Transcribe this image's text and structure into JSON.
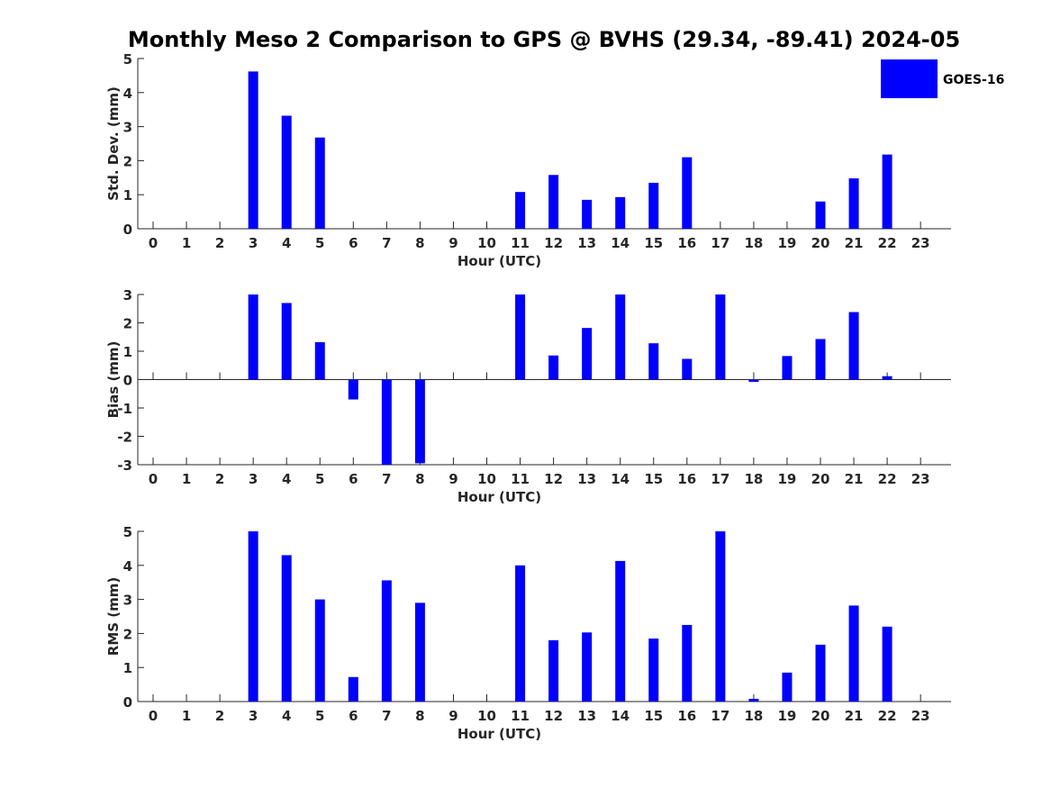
{
  "title": "Monthly Meso 2 Comparison to GPS @ BVHS (29.34, -89.41) 2024-05",
  "legend": {
    "label": "GOES-16",
    "color": "#0000ff",
    "placement": "top-right"
  },
  "chart_data": [
    {
      "type": "bar",
      "ylabel": "Std. Dev. (mm)",
      "xlabel": "Hour (UTC)",
      "ylim": [
        0,
        5
      ],
      "yticks": [
        0,
        1,
        2,
        3,
        4,
        5
      ],
      "categories": [
        "0",
        "1",
        "2",
        "3",
        "4",
        "5",
        "6",
        "7",
        "8",
        "9",
        "10",
        "11",
        "12",
        "13",
        "14",
        "15",
        "16",
        "17",
        "18",
        "19",
        "20",
        "21",
        "22",
        "23"
      ],
      "values": [
        null,
        null,
        null,
        4.62,
        3.32,
        2.68,
        null,
        null,
        null,
        null,
        null,
        1.08,
        1.58,
        0.85,
        0.93,
        1.35,
        2.1,
        null,
        null,
        null,
        0.8,
        1.48,
        2.18,
        null
      ],
      "color": "#0000ff"
    },
    {
      "type": "bar",
      "ylabel": "Bias (mm)",
      "xlabel": "Hour (UTC)",
      "ylim": [
        -3,
        3
      ],
      "yticks": [
        -3,
        -2,
        -1,
        0,
        1,
        2,
        3
      ],
      "categories": [
        "0",
        "1",
        "2",
        "3",
        "4",
        "5",
        "6",
        "7",
        "8",
        "9",
        "10",
        "11",
        "12",
        "13",
        "14",
        "15",
        "16",
        "17",
        "18",
        "19",
        "20",
        "21",
        "22",
        "23"
      ],
      "values": [
        null,
        null,
        null,
        3.0,
        2.7,
        1.32,
        -0.7,
        -3.0,
        -2.95,
        null,
        null,
        3.0,
        0.85,
        1.82,
        3.0,
        1.28,
        0.73,
        3.0,
        -0.08,
        0.83,
        1.43,
        2.38,
        0.12,
        null
      ],
      "color": "#0000ff"
    },
    {
      "type": "bar",
      "ylabel": "RMS (mm)",
      "xlabel": "Hour (UTC)",
      "ylim": [
        0,
        5
      ],
      "yticks": [
        0,
        1,
        2,
        3,
        4,
        5
      ],
      "categories": [
        "0",
        "1",
        "2",
        "3",
        "4",
        "5",
        "6",
        "7",
        "8",
        "9",
        "10",
        "11",
        "12",
        "13",
        "14",
        "15",
        "16",
        "17",
        "18",
        "19",
        "20",
        "21",
        "22",
        "23"
      ],
      "values": [
        null,
        null,
        null,
        5.0,
        4.3,
        3.0,
        0.72,
        3.56,
        2.9,
        null,
        null,
        4.0,
        1.8,
        2.03,
        4.13,
        1.85,
        2.25,
        5.0,
        0.08,
        0.85,
        1.67,
        2.82,
        2.2,
        null
      ],
      "color": "#0000ff"
    }
  ]
}
